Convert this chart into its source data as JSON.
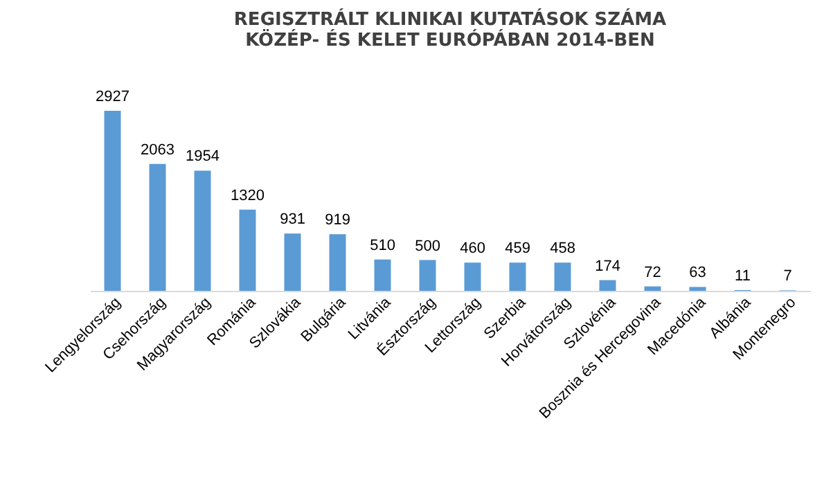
{
  "chart_data": {
    "type": "bar",
    "title": "REGISZTRÁLT KLINIKAI KUTATÁSOK SZÁMA\nKÖZÉP- ÉS KELET EURÓPÁBAN 2014-BEN",
    "categories": [
      "Lengyelország",
      "Csehország",
      "Magyarország",
      "Románia",
      "Szlovákia",
      "Bulgária",
      "Litvánia",
      "Észtország",
      "Lettország",
      "Szerbia",
      "Horvátország",
      "Szlovénia",
      "Bosznia és Hercegovina",
      "Macedónia",
      "Albánia",
      "Montenegro"
    ],
    "values": [
      2927,
      2063,
      1954,
      1320,
      931,
      919,
      510,
      500,
      460,
      459,
      458,
      174,
      72,
      63,
      11,
      7
    ],
    "color": "#5b9bd5",
    "data_labels": true
  }
}
